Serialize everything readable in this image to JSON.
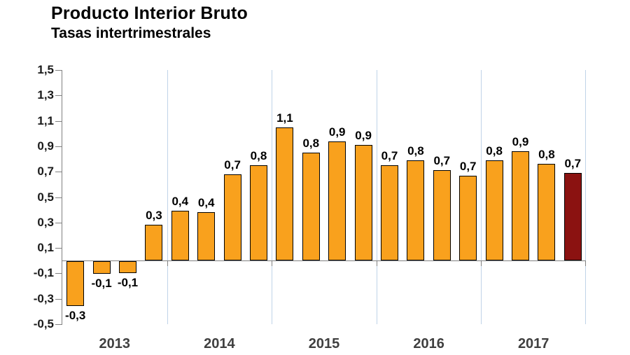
{
  "header": {
    "title": "Producto Interior Bruto",
    "subtitle": "Tasas intertrimestrales"
  },
  "chart_data": {
    "type": "bar",
    "title": "Producto Interior Bruto",
    "subtitle": "Tasas intertrimestrales",
    "years": [
      "2013",
      "2014",
      "2015",
      "2016",
      "2017"
    ],
    "quarters_per_year": 4,
    "bar_labels": [
      "-0,3",
      "-0,1",
      "-0,1",
      "0,3",
      "0,4",
      "0,4",
      "0,7",
      "0,8",
      "1,1",
      "0,8",
      "0,9",
      "0,9",
      "0,7",
      "0,8",
      "0,7",
      "0,7",
      "0,8",
      "0,9",
      "0,8",
      "0,7"
    ],
    "values": [
      -0.35,
      -0.1,
      -0.09,
      0.28,
      0.39,
      0.38,
      0.68,
      0.75,
      1.05,
      0.85,
      0.94,
      0.91,
      0.75,
      0.79,
      0.71,
      0.67,
      0.79,
      0.86,
      0.76,
      0.69
    ],
    "highlight_index": 19,
    "ylim": [
      -0.5,
      1.5
    ],
    "ytick_step": 0.2,
    "ytick_labels": [
      "1,5",
      "1,3",
      "1,1",
      "0,9",
      "0,7",
      "0,5",
      "0,3",
      "0,1",
      "-0,1",
      "-0,3",
      "-0,5"
    ],
    "legend": "none",
    "grid": "vertical-year-separators",
    "colors": {
      "bar": "#F9A11D",
      "bar_border": "#000000",
      "highlight_bar": "#8B1211",
      "gridline": "#C0D3E8",
      "axis": "#808080",
      "data_label": "#000000",
      "ytick_label": "#1a1a1a",
      "year_label": "#3f3f3f"
    }
  }
}
